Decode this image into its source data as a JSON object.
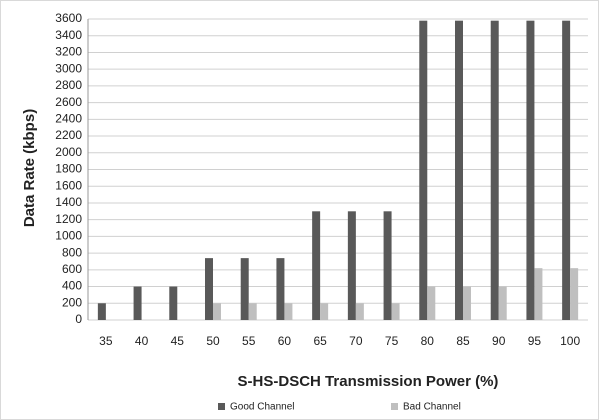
{
  "chart_data": {
    "type": "bar",
    "x_label": "S-HS-DSCH Transmission Power (%)",
    "y_label": "Data Rate (kbps)",
    "categories": [
      "35",
      "40",
      "45",
      "50",
      "55",
      "60",
      "65",
      "70",
      "75",
      "80",
      "85",
      "90",
      "95",
      "100"
    ],
    "series": [
      {
        "name": "Good Channel",
        "color": "#595959",
        "values": [
          200,
          400,
          400,
          740,
          740,
          740,
          1300,
          1300,
          1300,
          3580,
          3580,
          3580,
          3580,
          3580
        ]
      },
      {
        "name": "Bad Channel",
        "color": "#bfbfbf",
        "values": [
          0,
          0,
          0,
          200,
          200,
          200,
          200,
          200,
          200,
          400,
          400,
          400,
          620,
          620
        ]
      }
    ],
    "ylim": [
      0,
      3600
    ],
    "yticks": [
      0,
      200,
      400,
      600,
      800,
      1000,
      1200,
      1400,
      1600,
      1800,
      2000,
      2200,
      2400,
      2600,
      2800,
      3000,
      3200,
      3400,
      3600
    ],
    "grid": true,
    "legend": "bottom"
  }
}
